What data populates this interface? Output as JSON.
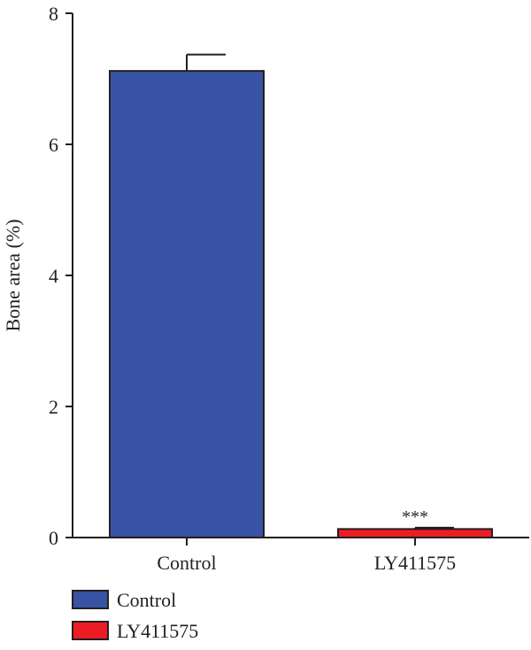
{
  "chart_data": {
    "type": "bar",
    "title": "",
    "ylabel": "Bone area (%)",
    "xlabel": "",
    "categories": [
      "Control",
      "LY411575"
    ],
    "values": [
      7.12,
      0.13
    ],
    "errors": [
      0.25,
      0.02
    ],
    "colors": [
      "#3953a4",
      "#ed1c24"
    ],
    "ylim": [
      0,
      8
    ],
    "yticks": [
      0,
      2,
      4,
      6,
      8
    ],
    "annotations": [
      {
        "category": "LY411575",
        "text": "***"
      }
    ],
    "legend": {
      "position": "bottom-left",
      "entries": [
        {
          "label": "Control",
          "color": "#3953a4"
        },
        {
          "label": "LY411575",
          "color": "#ed1c24"
        }
      ]
    },
    "grid": false
  }
}
